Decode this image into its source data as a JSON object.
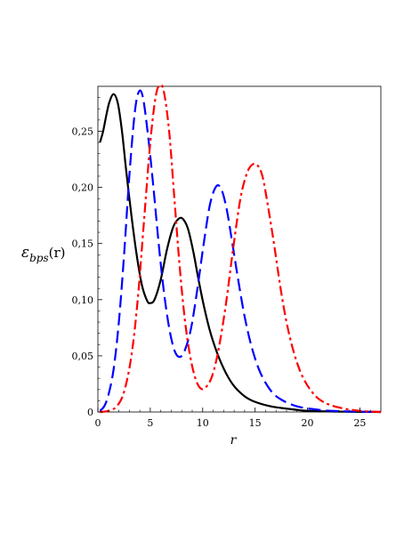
{
  "chart_data": {
    "type": "line",
    "xlabel": "r",
    "ylabel": {
      "main": "ε",
      "sub": "bps",
      "arg": "(r)"
    },
    "xlim": [
      0,
      27
    ],
    "ylim": [
      0,
      0.29
    ],
    "grid": false,
    "legend": "none",
    "x_ticks": [
      0,
      5,
      10,
      15,
      20,
      25
    ],
    "x_tick_labels": [
      "0",
      "5",
      "10",
      "15",
      "20",
      "25"
    ],
    "y_ticks": [
      0,
      0.05,
      0.1,
      0.15,
      0.2,
      0.25
    ],
    "y_tick_labels": [
      "0",
      "0,05",
      "0,10",
      "0,15",
      "0,20",
      "0,25"
    ],
    "series": [
      {
        "color": "#000000",
        "dash": "solid",
        "points": [
          [
            0.2,
            0.24
          ],
          [
            0.5,
            0.25
          ],
          [
            0.8,
            0.264
          ],
          [
            1.1,
            0.276
          ],
          [
            1.5,
            0.283
          ],
          [
            1.9,
            0.275
          ],
          [
            2.3,
            0.25
          ],
          [
            2.7,
            0.215
          ],
          [
            3.2,
            0.175
          ],
          [
            3.7,
            0.14
          ],
          [
            4.2,
            0.113
          ],
          [
            4.7,
            0.099
          ],
          [
            5.0,
            0.097
          ],
          [
            5.4,
            0.1
          ],
          [
            6.0,
            0.118
          ],
          [
            6.6,
            0.145
          ],
          [
            7.2,
            0.165
          ],
          [
            7.7,
            0.172
          ],
          [
            8.1,
            0.172
          ],
          [
            8.6,
            0.163
          ],
          [
            9.1,
            0.143
          ],
          [
            9.6,
            0.118
          ],
          [
            10.1,
            0.095
          ],
          [
            10.7,
            0.072
          ],
          [
            11.4,
            0.052
          ],
          [
            12.2,
            0.035
          ],
          [
            13.0,
            0.023
          ],
          [
            14.0,
            0.014
          ],
          [
            15.0,
            0.009
          ],
          [
            16.5,
            0.005
          ],
          [
            18.0,
            0.003
          ],
          [
            20.0,
            0.001
          ],
          [
            22.0,
            0.0005
          ],
          [
            24.0,
            0.0002
          ],
          [
            27.0,
            0.0
          ]
        ]
      },
      {
        "color": "#0000ff",
        "dash": "dashed",
        "points": [
          [
            0.2,
            0.001
          ],
          [
            0.6,
            0.005
          ],
          [
            1.0,
            0.015
          ],
          [
            1.5,
            0.038
          ],
          [
            2.0,
            0.08
          ],
          [
            2.5,
            0.14
          ],
          [
            3.0,
            0.21
          ],
          [
            3.5,
            0.265
          ],
          [
            3.9,
            0.285
          ],
          [
            4.3,
            0.28
          ],
          [
            4.8,
            0.245
          ],
          [
            5.3,
            0.2
          ],
          [
            5.8,
            0.15
          ],
          [
            6.3,
            0.107
          ],
          [
            6.8,
            0.075
          ],
          [
            7.3,
            0.055
          ],
          [
            7.8,
            0.049
          ],
          [
            8.3,
            0.055
          ],
          [
            8.9,
            0.075
          ],
          [
            9.5,
            0.11
          ],
          [
            10.1,
            0.15
          ],
          [
            10.7,
            0.185
          ],
          [
            11.3,
            0.201
          ],
          [
            11.8,
            0.198
          ],
          [
            12.3,
            0.18
          ],
          [
            12.8,
            0.152
          ],
          [
            13.4,
            0.117
          ],
          [
            14.0,
            0.085
          ],
          [
            14.7,
            0.057
          ],
          [
            15.5,
            0.035
          ],
          [
            16.5,
            0.019
          ],
          [
            17.5,
            0.011
          ],
          [
            19.0,
            0.005
          ],
          [
            21.0,
            0.002
          ],
          [
            23.0,
            0.0007
          ],
          [
            27.0,
            0.0
          ]
        ]
      },
      {
        "color": "#ff0000",
        "dash": "dashdot",
        "points": [
          [
            0.2,
            0.0
          ],
          [
            1.0,
            0.001
          ],
          [
            1.8,
            0.005
          ],
          [
            2.5,
            0.018
          ],
          [
            3.2,
            0.05
          ],
          [
            3.8,
            0.1
          ],
          [
            4.4,
            0.17
          ],
          [
            5.0,
            0.24
          ],
          [
            5.5,
            0.28
          ],
          [
            5.9,
            0.291
          ],
          [
            6.3,
            0.285
          ],
          [
            6.8,
            0.25
          ],
          [
            7.3,
            0.19
          ],
          [
            7.8,
            0.13
          ],
          [
            8.3,
            0.082
          ],
          [
            8.8,
            0.05
          ],
          [
            9.3,
            0.03
          ],
          [
            9.8,
            0.021
          ],
          [
            10.3,
            0.022
          ],
          [
            10.9,
            0.032
          ],
          [
            11.5,
            0.055
          ],
          [
            12.2,
            0.095
          ],
          [
            12.9,
            0.145
          ],
          [
            13.6,
            0.19
          ],
          [
            14.2,
            0.212
          ],
          [
            14.7,
            0.22
          ],
          [
            15.2,
            0.22
          ],
          [
            15.7,
            0.21
          ],
          [
            16.2,
            0.185
          ],
          [
            16.8,
            0.15
          ],
          [
            17.4,
            0.112
          ],
          [
            18.0,
            0.08
          ],
          [
            18.7,
            0.053
          ],
          [
            19.5,
            0.032
          ],
          [
            20.5,
            0.017
          ],
          [
            21.5,
            0.009
          ],
          [
            23.0,
            0.004
          ],
          [
            25.0,
            0.001
          ],
          [
            27.0,
            0.0
          ]
        ]
      }
    ]
  }
}
